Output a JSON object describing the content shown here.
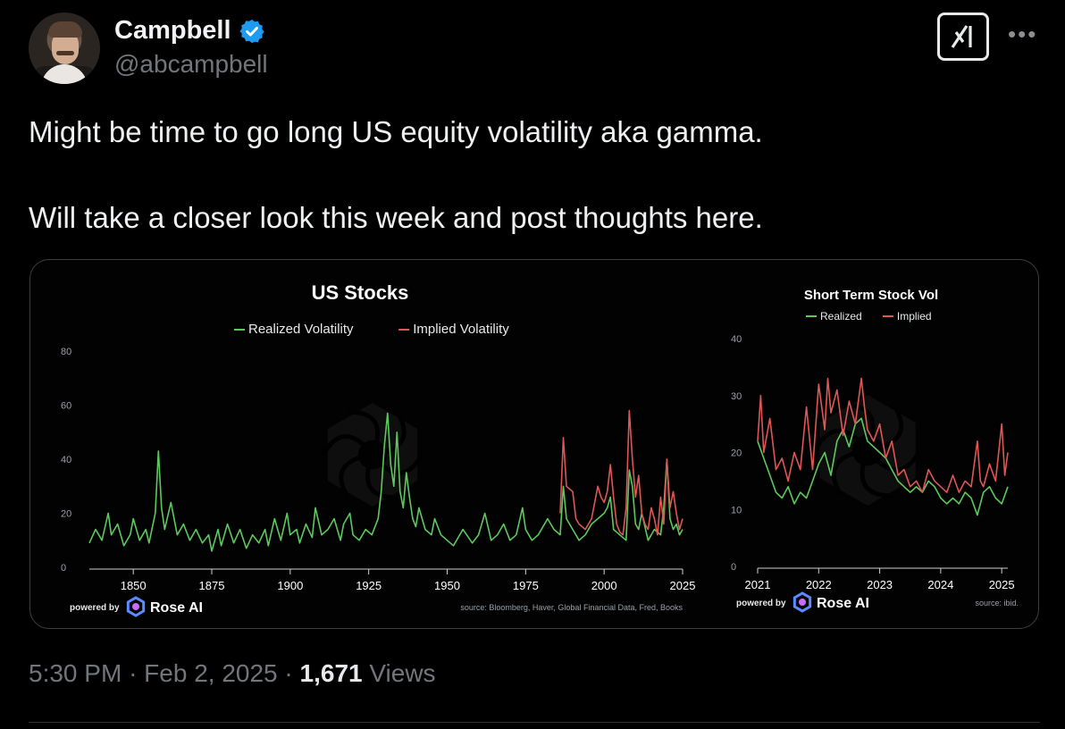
{
  "author": {
    "name": "Campbell",
    "handle": "@abcampbell",
    "verified": true
  },
  "icons": {
    "verified": "verified-badge-icon",
    "grok": "grok-logo-icon",
    "more": "more-options-icon",
    "rose_ai": "rose-ai-logo-icon"
  },
  "tweet": {
    "line1": "Might be time to go long US equity volatility aka gamma.",
    "line2": "Will take a closer look this week and post thoughts here."
  },
  "meta": {
    "time": "5:30 PM",
    "sep1": "·",
    "date": "Feb 2, 2025",
    "sep2": "·",
    "views_count": "1,671",
    "views_label": "Views"
  },
  "colors": {
    "realized": "#5cc95c",
    "implied": "#e05555",
    "verified": "#1d9bf0"
  },
  "chart_data": [
    {
      "type": "line",
      "title": "US Stocks",
      "legend_placement": "top-center",
      "xlim": [
        1836,
        2025
      ],
      "ylim": [
        0,
        80
      ],
      "yticks": [
        0,
        20,
        40,
        60,
        80
      ],
      "xticks": [
        1850,
        1875,
        1900,
        1925,
        1950,
        1975,
        2000,
        2025
      ],
      "source": "source: Bloomberg, Haver, Global Financial Data, Fred, Books",
      "powered_by": "powered by",
      "brand": "Rose AI",
      "series": [
        {
          "name": "Realized Volatility",
          "color": "#5cc95c",
          "x": [
            1836,
            1838,
            1840,
            1842,
            1843,
            1845,
            1847,
            1849,
            1850,
            1852,
            1854,
            1855,
            1857,
            1858,
            1859,
            1860,
            1862,
            1864,
            1866,
            1868,
            1870,
            1872,
            1874,
            1875,
            1877,
            1878,
            1880,
            1882,
            1884,
            1886,
            1888,
            1890,
            1892,
            1893,
            1895,
            1897,
            1899,
            1900,
            1902,
            1903,
            1905,
            1907,
            1908,
            1910,
            1912,
            1914,
            1916,
            1917,
            1919,
            1920,
            1922,
            1924,
            1926,
            1928,
            1929,
            1930,
            1931,
            1932,
            1933,
            1934,
            1935,
            1936,
            1937,
            1938,
            1939,
            1940,
            1941,
            1943,
            1945,
            1946,
            1948,
            1950,
            1952,
            1955,
            1958,
            1960,
            1962,
            1964,
            1966,
            1968,
            1970,
            1972,
            1974,
            1975,
            1977,
            1979,
            1982,
            1984,
            1986,
            1987,
            1988,
            1990,
            1992,
            1994,
            1996,
            1998,
            2000,
            2001,
            2002,
            2003,
            2005,
            2007,
            2008,
            2009,
            2010,
            2011,
            2012,
            2014,
            2016,
            2018,
            2019,
            2020,
            2021,
            2022,
            2023,
            2024,
            2025
          ],
          "values": [
            9,
            14,
            10,
            20,
            12,
            16,
            8,
            12,
            18,
            10,
            14,
            9,
            20,
            43,
            22,
            14,
            24,
            12,
            16,
            10,
            14,
            9,
            12,
            6,
            14,
            8,
            16,
            9,
            14,
            7,
            12,
            9,
            14,
            8,
            18,
            10,
            20,
            12,
            14,
            9,
            16,
            11,
            22,
            12,
            14,
            18,
            10,
            16,
            20,
            12,
            10,
            14,
            12,
            18,
            28,
            45,
            57,
            38,
            30,
            50,
            28,
            22,
            35,
            26,
            18,
            15,
            22,
            14,
            12,
            18,
            12,
            10,
            8,
            14,
            9,
            12,
            20,
            10,
            12,
            16,
            10,
            12,
            22,
            14,
            10,
            12,
            18,
            14,
            12,
            30,
            18,
            14,
            10,
            12,
            16,
            18,
            20,
            22,
            26,
            14,
            12,
            10,
            36,
            30,
            16,
            14,
            20,
            10,
            14,
            12,
            22,
            40,
            18,
            14,
            16,
            12,
            14
          ]
        },
        {
          "name": "Implied Volatility",
          "color": "#e05555",
          "x": [
            1986,
            1987,
            1988,
            1990,
            1991,
            1992,
            1994,
            1996,
            1998,
            1999,
            2000,
            2001,
            2002,
            2003,
            2004,
            2005,
            2006,
            2007,
            2008,
            2009,
            2010,
            2011,
            2012,
            2013,
            2014,
            2015,
            2016,
            2017,
            2018,
            2019,
            2020,
            2021,
            2022,
            2023,
            2024,
            2025
          ],
          "values": [
            20,
            48,
            30,
            28,
            18,
            16,
            14,
            18,
            30,
            26,
            24,
            28,
            38,
            26,
            16,
            13,
            12,
            22,
            58,
            40,
            26,
            34,
            20,
            16,
            14,
            22,
            18,
            12,
            26,
            16,
            40,
            22,
            28,
            20,
            14,
            18
          ]
        }
      ]
    },
    {
      "type": "line",
      "title": "Short Term Stock Vol",
      "legend_placement": "top-center",
      "xlim": [
        2021,
        2025.1
      ],
      "ylim": [
        0,
        40
      ],
      "yticks": [
        0,
        10,
        20,
        30,
        40
      ],
      "xticks": [
        2021,
        2022,
        2023,
        2024,
        2025
      ],
      "source": "source: ibid.",
      "powered_by": "powered by",
      "brand": "Rose AI",
      "series": [
        {
          "name": "Realized",
          "color": "#5cc95c",
          "x": [
            2021.0,
            2021.1,
            2021.2,
            2021.3,
            2021.4,
            2021.5,
            2021.6,
            2021.7,
            2021.8,
            2021.9,
            2022.0,
            2022.1,
            2022.2,
            2022.3,
            2022.4,
            2022.5,
            2022.6,
            2022.7,
            2022.8,
            2022.9,
            2023.0,
            2023.1,
            2023.2,
            2023.3,
            2023.4,
            2023.5,
            2023.6,
            2023.7,
            2023.8,
            2023.9,
            2024.0,
            2024.1,
            2024.2,
            2024.3,
            2024.4,
            2024.5,
            2024.6,
            2024.7,
            2024.8,
            2024.9,
            2025.0,
            2025.1
          ],
          "values": [
            22,
            19,
            16,
            13,
            12,
            14,
            11,
            13,
            12,
            15,
            18,
            20,
            16,
            22,
            24,
            21,
            25,
            26,
            22,
            21,
            20,
            19,
            17,
            15,
            14,
            13,
            14,
            13,
            15,
            14,
            12,
            11,
            12,
            11,
            13,
            12,
            9,
            13,
            14,
            12,
            11,
            14
          ]
        },
        {
          "name": "Implied",
          "color": "#e05555",
          "x": [
            2021.0,
            2021.05,
            2021.1,
            2021.2,
            2021.3,
            2021.4,
            2021.5,
            2021.6,
            2021.7,
            2021.8,
            2021.9,
            2022.0,
            2022.1,
            2022.15,
            2022.2,
            2022.3,
            2022.4,
            2022.5,
            2022.6,
            2022.7,
            2022.75,
            2022.8,
            2022.9,
            2023.0,
            2023.1,
            2023.2,
            2023.3,
            2023.4,
            2023.5,
            2023.6,
            2023.7,
            2023.8,
            2023.9,
            2024.0,
            2024.1,
            2024.2,
            2024.3,
            2024.4,
            2024.5,
            2024.6,
            2024.65,
            2024.7,
            2024.8,
            2024.9,
            2025.0,
            2025.05,
            2025.1
          ],
          "values": [
            22,
            30,
            20,
            26,
            17,
            19,
            15,
            20,
            17,
            28,
            17,
            32,
            24,
            33,
            27,
            31,
            23,
            29,
            25,
            33,
            28,
            24,
            22,
            25,
            19,
            22,
            16,
            17,
            14,
            15,
            13,
            17,
            15,
            14,
            13,
            16,
            13,
            15,
            14,
            22,
            15,
            14,
            18,
            15,
            25,
            16,
            20
          ]
        }
      ]
    }
  ]
}
